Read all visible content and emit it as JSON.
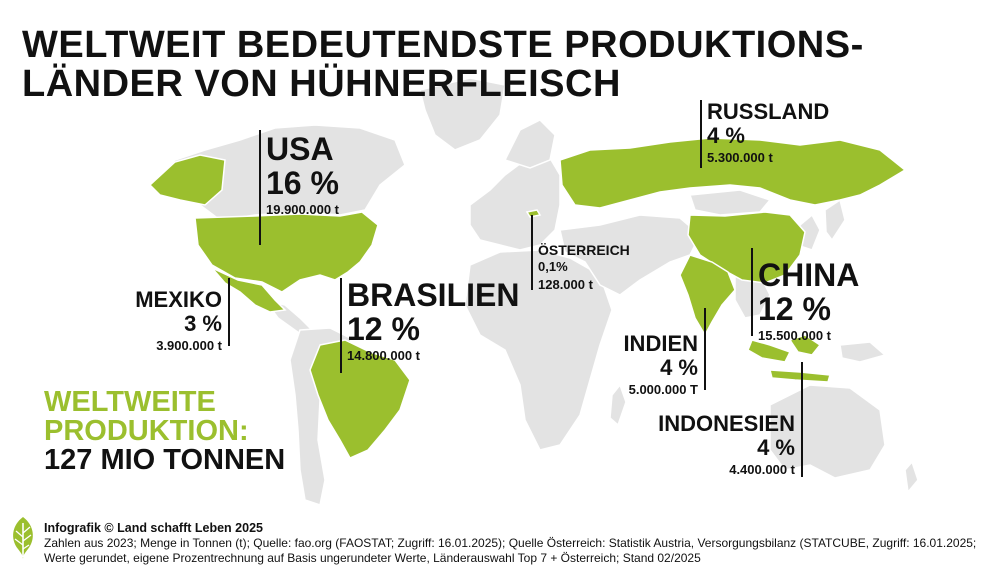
{
  "title": {
    "line1": "WELTWEIT BEDEUTENDSTE PRODUKTIONS-",
    "line2": "LÄNDER VON HÜHNERFLEISCH"
  },
  "countries": {
    "usa": {
      "name": "USA",
      "share": "16 %",
      "tons": "19.900.000 t"
    },
    "mexiko": {
      "name": "MEXIKO",
      "share": "3 %",
      "tons": "3.900.000 t"
    },
    "brasilien": {
      "name": "BRASILIEN",
      "share": "12 %",
      "tons": "14.800.000 t"
    },
    "oesterreich": {
      "name": "ÖSTERREICH",
      "share": "0,1%",
      "tons": "128.000 t"
    },
    "russland": {
      "name": "RUSSLAND",
      "share": "4 %",
      "tons": "5.300.000 t"
    },
    "china": {
      "name": "CHINA",
      "share": "12 %",
      "tons": "15.500.000 t"
    },
    "indien": {
      "name": "INDIEN",
      "share": "4 %",
      "tons": "5.000.000 T"
    },
    "indonesien": {
      "name": "INDONESIEN",
      "share": "4 %",
      "tons": "4.400.000 t"
    }
  },
  "world_total": {
    "line1": "WELTWEITE",
    "line2": "PRODUKTION:",
    "line3": "127 MIO TONNEN"
  },
  "footer": {
    "credit": "Infografik © Land schafft Leben 2025",
    "line1": "Zahlen aus 2023; Menge in Tonnen (t); Quelle: fao.org (FAOSTAT; Zugriff: 16.01.2025); Quelle Österreich: Statistik Austria, Versorgungsbilanz (STATCUBE, Zugriff: 16.01.2025;",
    "line2": "Werte gerundet, eigene Prozentrechnung auf Basis ungerundeter Werte, Länderauswahl Top 7 + Österreich; Stand 02/2025"
  },
  "colors": {
    "highlight": "#9bbf2e",
    "land": "#e3e3e3",
    "border": "#ffffff",
    "text": "#111111"
  },
  "logo_icon": "leaf-logo-icon"
}
